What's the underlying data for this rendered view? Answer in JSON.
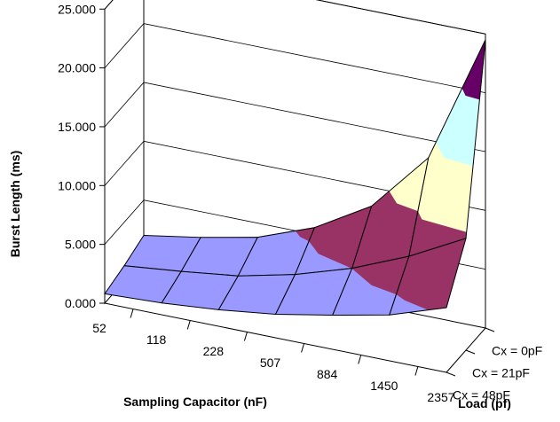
{
  "chart_data": {
    "type": "surface",
    "title": "",
    "xlabel": "Sampling Capacitor (nF)",
    "ylabel": "Load (pf)",
    "zlabel": "Burst Length (ms)",
    "x_categories": [
      "52",
      "118",
      "228",
      "507",
      "884",
      "1450",
      "2357"
    ],
    "y_categories": [
      "Cx = 0pF",
      "Cx = 21pF",
      "Cx = 48pF"
    ],
    "z_ticks": [
      "0.000",
      "5.000",
      "10.000",
      "15.000",
      "20.000",
      "25.000"
    ],
    "zlim": [
      0,
      25
    ],
    "z_band_colors": [
      "#9999ff",
      "#993366",
      "#ffffcc",
      "#ccffff",
      "#660066"
    ],
    "surface_color_bands": [
      {
        "range": "0.000 - 5.000",
        "color": "#9999ff"
      },
      {
        "range": "5.000 - 10.000",
        "color": "#993366"
      },
      {
        "range": "10.000 - 15.000",
        "color": "#ffffcc"
      },
      {
        "range": "15.000 - 20.000",
        "color": "#ccffff"
      },
      {
        "range": "20.000 - 25.000",
        "color": "#660066"
      }
    ],
    "grid": true,
    "series": [
      {
        "name": "Cx = 48pF",
        "values": [
          0.8,
          1.0,
          1.4,
          2.0,
          2.9,
          3.9,
          5.5
        ]
      },
      {
        "name": "Cx = 21pF",
        "values": [
          1.3,
          1.8,
          2.4,
          3.5,
          5.0,
          7.0,
          9.5
        ]
      },
      {
        "name": "Cx = 0pF",
        "values": [
          2.0,
          2.8,
          3.8,
          5.6,
          8.4,
          13.5,
          24.5
        ]
      }
    ]
  }
}
